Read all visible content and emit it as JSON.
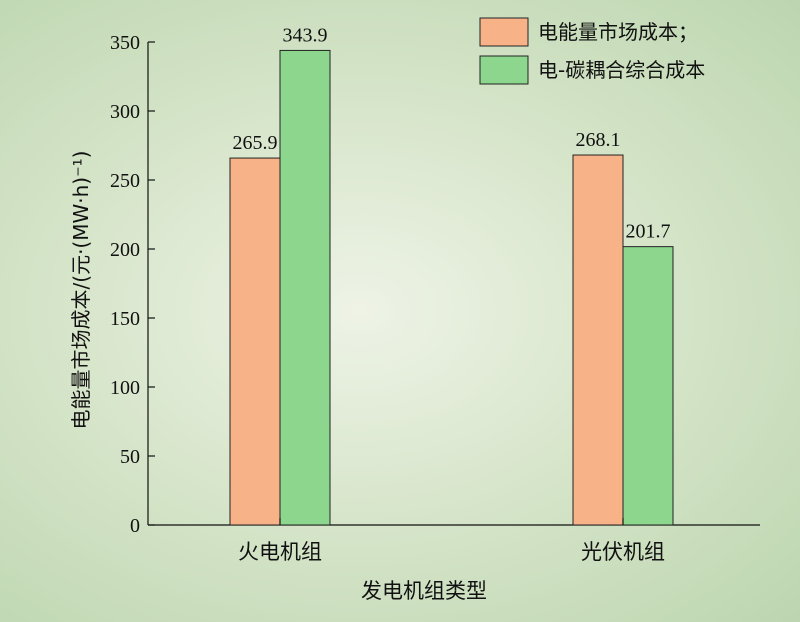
{
  "chart_data": {
    "type": "bar",
    "categories": [
      "火电机组",
      "光伏机组"
    ],
    "series": [
      {
        "name": "电能量市场成本；",
        "values": [
          265.9,
          268.1
        ],
        "color": "#f7b288"
      },
      {
        "name": "电-碳耦合综合成本",
        "values": [
          343.9,
          201.7
        ],
        "color": "#8cd68e"
      }
    ],
    "data_labels": [
      [
        "265.9",
        "268.1"
      ],
      [
        "343.9",
        "201.7"
      ]
    ],
    "xlabel": "发电机组类型",
    "ylabel": "电能量市场成本/(元·(MW·h)⁻¹)",
    "ylim": [
      0,
      350
    ],
    "yticks": [
      0,
      50,
      100,
      150,
      200,
      250,
      300,
      350
    ],
    "grid": false,
    "legend": "top-right"
  }
}
